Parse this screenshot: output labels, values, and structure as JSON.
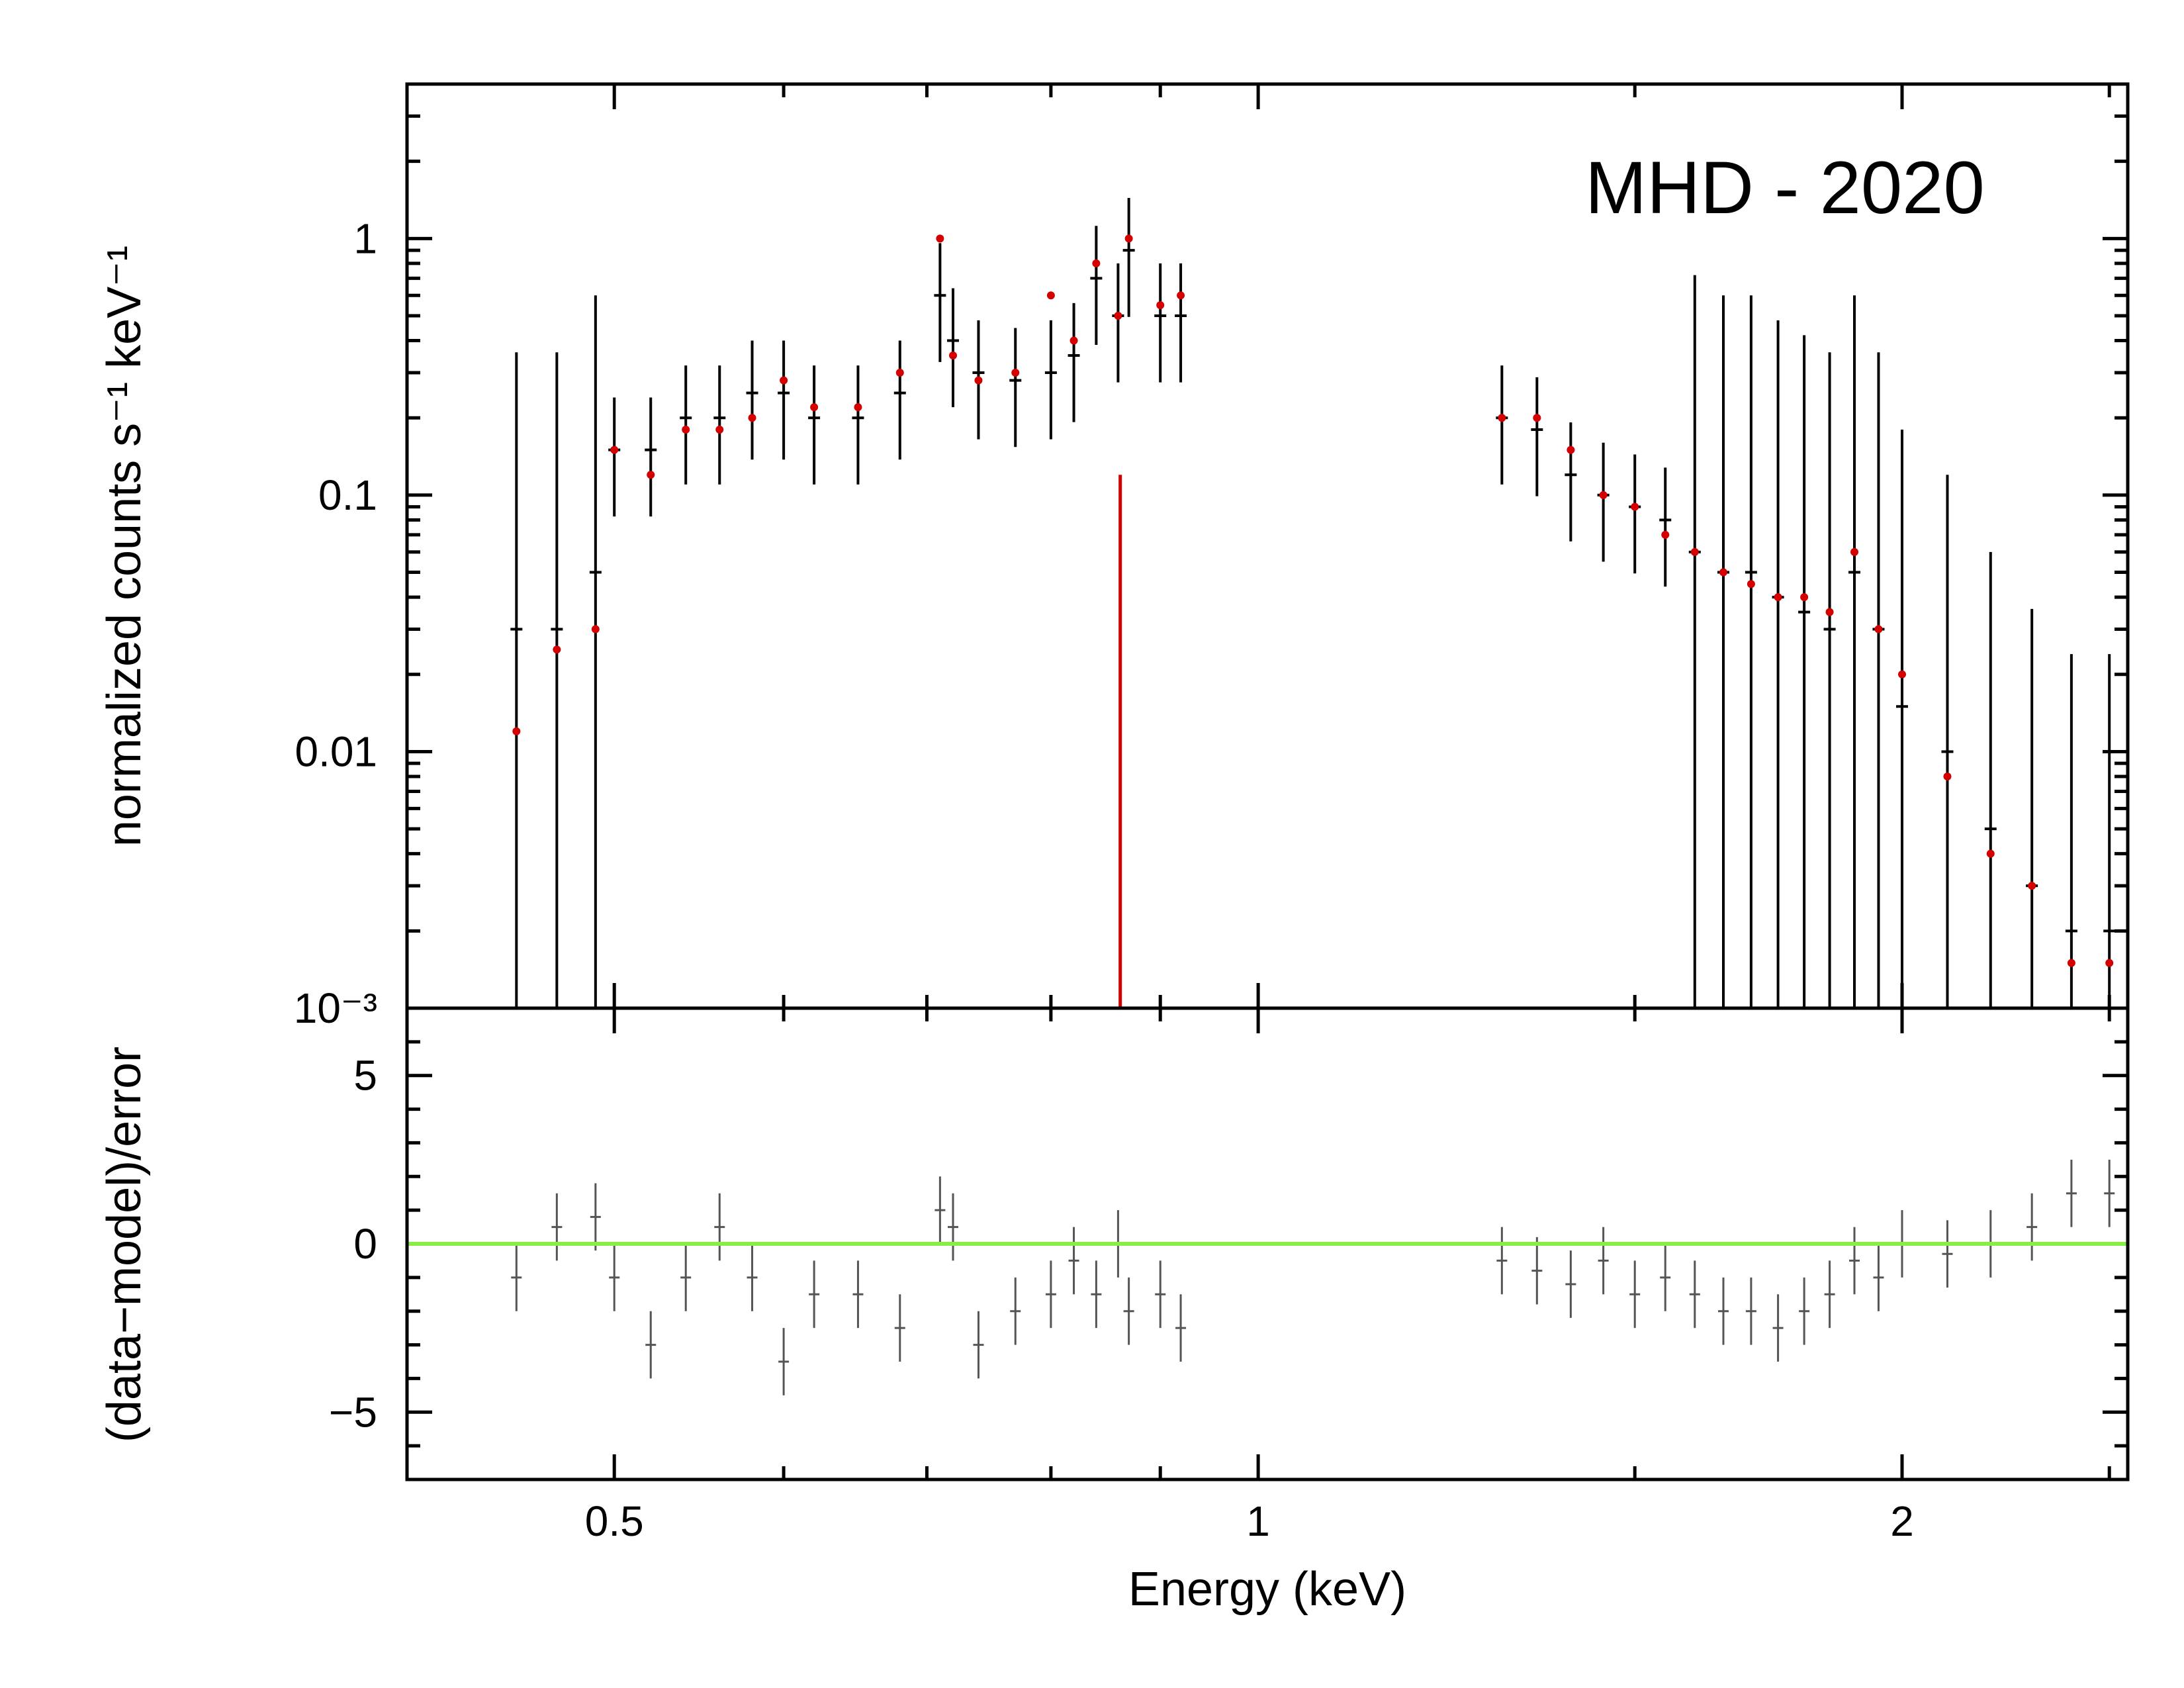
{
  "chart_data": [
    {
      "type": "scatter",
      "panel": "spectrum",
      "annotation": "MHD - 2020",
      "ylabel": "normalized counts s⁻¹ keV⁻¹",
      "xscale": "log",
      "yscale": "log",
      "xlim": [
        0.4,
        2.55
      ],
      "ylim": [
        0.001,
        4
      ],
      "yticks": [
        {
          "value": 1,
          "label": "1"
        },
        {
          "value": 0.1,
          "label": "0.1"
        },
        {
          "value": 0.01,
          "label": "0.01"
        },
        {
          "value": 0.001,
          "label": "10⁻³"
        }
      ],
      "gaps_keV": [
        [
          0.93,
          1.28
        ]
      ],
      "line_feature": {
        "energy_keV": 0.862,
        "color": "#d40000"
      },
      "series": [
        {
          "name": "data",
          "color": "#000000",
          "x": [
            0.45,
            0.47,
            0.49,
            0.5,
            0.52,
            0.54,
            0.56,
            0.58,
            0.6,
            0.62,
            0.65,
            0.68,
            0.71,
            0.72,
            0.74,
            0.77,
            0.8,
            0.82,
            0.84,
            0.86,
            0.87,
            0.9,
            0.92,
            1.3,
            1.35,
            1.4,
            1.45,
            1.5,
            1.55,
            1.6,
            1.65,
            1.7,
            1.75,
            1.8,
            1.85,
            1.9,
            1.95,
            2.0,
            2.1,
            2.2,
            2.3,
            2.4,
            2.5
          ],
          "y": [
            0.03,
            0.03,
            0.05,
            0.15,
            0.15,
            0.2,
            0.2,
            0.25,
            0.25,
            0.2,
            0.2,
            0.25,
            0.6,
            0.4,
            0.3,
            0.28,
            0.3,
            0.35,
            0.7,
            0.5,
            0.9,
            0.5,
            0.5,
            0.2,
            0.18,
            0.12,
            0.1,
            0.09,
            0.08,
            0.06,
            0.05,
            0.05,
            0.04,
            0.035,
            0.03,
            0.05,
            0.03,
            0.015,
            0.01,
            0.005,
            0.003,
            0.002,
            0.002
          ]
        },
        {
          "name": "model",
          "color": "#d40000",
          "x": [
            0.45,
            0.47,
            0.49,
            0.5,
            0.52,
            0.54,
            0.56,
            0.58,
            0.6,
            0.62,
            0.65,
            0.68,
            0.71,
            0.72,
            0.74,
            0.77,
            0.8,
            0.82,
            0.84,
            0.86,
            0.87,
            0.9,
            0.92,
            1.3,
            1.35,
            1.4,
            1.45,
            1.5,
            1.55,
            1.6,
            1.65,
            1.7,
            1.75,
            1.8,
            1.85,
            1.9,
            1.95,
            2.0,
            2.1,
            2.2,
            2.3,
            2.4,
            2.5
          ],
          "y": [
            0.012,
            0.025,
            0.03,
            0.15,
            0.12,
            0.18,
            0.18,
            0.2,
            0.28,
            0.22,
            0.22,
            0.3,
            1.0,
            0.35,
            0.28,
            0.3,
            0.6,
            0.4,
            0.8,
            0.5,
            1.0,
            0.55,
            0.6,
            0.2,
            0.2,
            0.15,
            0.1,
            0.09,
            0.07,
            0.06,
            0.05,
            0.045,
            0.04,
            0.04,
            0.035,
            0.06,
            0.03,
            0.02,
            0.008,
            0.004,
            0.003,
            0.0015,
            0.0015
          ]
        }
      ]
    },
    {
      "type": "scatter",
      "panel": "residuals",
      "ylabel": "(data−model)/error",
      "xlabel": "Energy (keV)",
      "xscale": "log",
      "xlim": [
        0.4,
        2.55
      ],
      "ylim": [
        -7,
        7
      ],
      "yticks": [
        {
          "value": 5,
          "label": "5"
        },
        {
          "value": 0,
          "label": "0"
        },
        {
          "value": -5,
          "label": "−5"
        }
      ],
      "xticks": [
        {
          "value": 0.5,
          "label": "0.5"
        },
        {
          "value": 1,
          "label": "1"
        },
        {
          "value": 2,
          "label": "2"
        }
      ],
      "zero_line_color": "#88ee44",
      "series": [
        {
          "name": "residuals",
          "color": "#555555",
          "x": [
            0.45,
            0.47,
            0.49,
            0.5,
            0.52,
            0.54,
            0.56,
            0.58,
            0.6,
            0.62,
            0.65,
            0.68,
            0.71,
            0.72,
            0.74,
            0.77,
            0.8,
            0.82,
            0.84,
            0.86,
            0.87,
            0.9,
            0.92,
            1.3,
            1.35,
            1.4,
            1.45,
            1.5,
            1.55,
            1.6,
            1.65,
            1.7,
            1.75,
            1.8,
            1.85,
            1.9,
            1.95,
            2.0,
            2.1,
            2.2,
            2.3,
            2.4,
            2.5
          ],
          "y": [
            -1.0,
            0.5,
            0.8,
            -1.0,
            -3.0,
            -1.0,
            0.5,
            -1.0,
            -3.5,
            -1.5,
            -1.5,
            -2.5,
            1.0,
            0.5,
            -3.0,
            -2.0,
            -1.5,
            -0.5,
            -1.5,
            0.0,
            -2.0,
            -1.5,
            -2.5,
            -0.5,
            -0.8,
            -1.2,
            -0.5,
            -1.5,
            -1.0,
            -1.5,
            -2.0,
            -2.0,
            -2.5,
            -2.0,
            -1.5,
            -0.5,
            -1.0,
            0.0,
            -0.3,
            0.0,
            0.5,
            1.5,
            1.5
          ]
        }
      ]
    }
  ]
}
